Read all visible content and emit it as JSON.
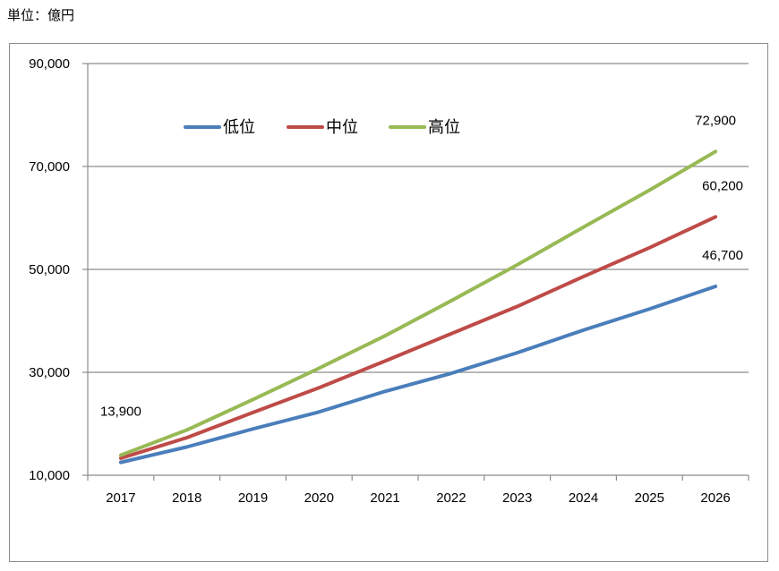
{
  "unit_label": "単位：億円",
  "chart_data": {
    "type": "line",
    "title": "",
    "xlabel": "",
    "ylabel": "",
    "categories": [
      "2017",
      "2018",
      "2019",
      "2020",
      "2021",
      "2022",
      "2023",
      "2024",
      "2025",
      "2026"
    ],
    "ylim": [
      10000,
      90000
    ],
    "yticks": [
      10000,
      30000,
      50000,
      70000,
      90000
    ],
    "ytick_labels": [
      "10,000",
      "30,000",
      "50,000",
      "70,000",
      "90,000"
    ],
    "grid": true,
    "legend_position": "top-left",
    "series": [
      {
        "name": "低位",
        "color": "#4a7ebb",
        "values": [
          12500,
          15500,
          19000,
          22300,
          26300,
          29800,
          33800,
          38200,
          42300,
          46700
        ]
      },
      {
        "name": "中位",
        "color": "#be4b48",
        "values": [
          13300,
          17300,
          22200,
          27000,
          32200,
          37500,
          42800,
          48600,
          54200,
          60200
        ]
      },
      {
        "name": "高位",
        "color": "#98b954",
        "values": [
          13900,
          18800,
          24700,
          30800,
          37100,
          43900,
          50900,
          58200,
          65400,
          72900
        ]
      }
    ],
    "annotations": [
      {
        "text": "13,900",
        "x": "2017",
        "y": 13900
      },
      {
        "text": "72,900",
        "x": "2026",
        "y": 72900
      },
      {
        "text": "60,200",
        "x": "2026",
        "y": 60200
      },
      {
        "text": "46,700",
        "x": "2026",
        "y": 46700
      }
    ]
  }
}
